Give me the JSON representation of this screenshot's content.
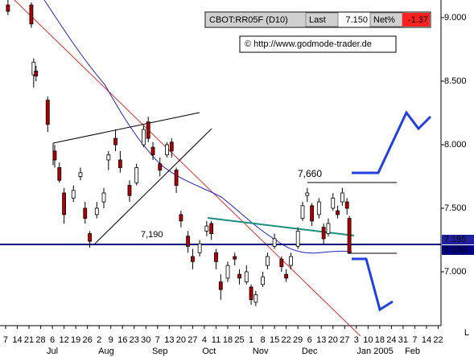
{
  "chart_data": {
    "type": "candlestick",
    "symbol": "CBOT:RR05F (D10)",
    "last_label": "Last",
    "last_value": "7.150",
    "net_label": "Net%",
    "net_value": "-1.37",
    "copyright": "© http://www.godmode-trader.de",
    "annotations": [
      "7,660",
      "7,190"
    ],
    "price_tags": [
      "7.195",
      "7.150"
    ],
    "up_color": "#ffffff",
    "down_color": "#b00000",
    "x": [
      1,
      11,
      12,
      13,
      18,
      21,
      23,
      25,
      29,
      32,
      34,
      36,
      39,
      42,
      44,
      47,
      49,
      53,
      56,
      59,
      61,
      63,
      66,
      69,
      71,
      73,
      75,
      78,
      80,
      83,
      86,
      88,
      90,
      92,
      95,
      98,
      100,
      103,
      105,
      107,
      110,
      112,
      115,
      118,
      120,
      122,
      125,
      127,
      129,
      131,
      134,
      136,
      138,
      140,
      142,
      144,
      146,
      147
    ],
    "open": [
      9.1,
      9.1,
      8.55,
      8.58,
      8.35,
      7.95,
      7.82,
      7.62,
      7.58,
      7.75,
      7.5,
      7.3,
      7.45,
      7.55,
      7.88,
      8.05,
      7.88,
      7.68,
      7.7,
      8.0,
      8.18,
      7.98,
      7.85,
      7.92,
      8.02,
      7.8,
      7.45,
      7.28,
      7.12,
      7.15,
      7.32,
      7.38,
      7.15,
      6.92,
      6.95,
      7.12,
      6.98,
      6.92,
      6.88,
      6.76,
      6.9,
      7.05,
      7.2,
      7.1,
      6.98,
      7.05,
      7.2,
      7.42,
      7.6,
      7.52,
      7.45,
      7.35,
      7.3,
      7.5,
      7.48,
      7.55,
      7.55,
      7.42
    ],
    "high": [
      9.15,
      9.12,
      8.68,
      8.62,
      8.38,
      8.0,
      7.86,
      7.66,
      7.68,
      7.82,
      7.55,
      7.32,
      7.55,
      7.66,
      7.95,
      8.12,
      7.95,
      7.72,
      7.85,
      8.15,
      8.22,
      8.02,
      7.9,
      8.02,
      8.05,
      7.82,
      7.48,
      7.32,
      7.18,
      7.25,
      7.4,
      7.4,
      7.18,
      6.98,
      7.08,
      7.15,
      7.02,
      7.05,
      6.9,
      6.85,
      7.0,
      7.15,
      7.3,
      7.12,
      7.02,
      7.15,
      7.35,
      7.55,
      7.66,
      7.54,
      7.58,
      7.38,
      7.42,
      7.62,
      7.52,
      7.66,
      7.58,
      7.44
    ],
    "low": [
      9.02,
      8.92,
      8.45,
      8.5,
      8.1,
      7.82,
      7.7,
      7.38,
      7.55,
      7.72,
      7.38,
      7.19,
      7.42,
      7.5,
      7.8,
      7.95,
      7.78,
      7.55,
      7.68,
      7.98,
      8.02,
      7.88,
      7.75,
      7.9,
      7.9,
      7.62,
      7.35,
      7.15,
      7.02,
      7.12,
      7.28,
      7.25,
      7.02,
      6.78,
      6.92,
      7.05,
      6.9,
      6.9,
      6.74,
      6.73,
      6.88,
      7.02,
      7.18,
      7.0,
      6.92,
      7.02,
      7.18,
      7.4,
      7.55,
      7.36,
      7.42,
      7.22,
      7.28,
      7.48,
      7.42,
      7.52,
      7.45,
      7.14
    ],
    "close": [
      9.05,
      8.95,
      8.65,
      8.54,
      8.16,
      7.88,
      7.72,
      7.45,
      7.64,
      7.78,
      7.42,
      7.24,
      7.5,
      7.62,
      7.92,
      8.0,
      7.82,
      7.6,
      7.82,
      8.12,
      8.05,
      7.92,
      7.8,
      8.0,
      7.95,
      7.68,
      7.4,
      7.2,
      7.08,
      7.22,
      7.36,
      7.3,
      7.08,
      6.86,
      7.05,
      7.1,
      6.95,
      7.0,
      6.78,
      6.82,
      6.96,
      7.12,
      7.26,
      7.04,
      6.95,
      7.12,
      7.32,
      7.52,
      7.62,
      7.4,
      7.55,
      7.26,
      7.38,
      7.58,
      7.45,
      7.62,
      7.5,
      7.15
    ],
    "xlim": [
      -2.4,
      186.2
    ],
    "ylim": [
      6.576,
      9.139
    ],
    "yticks": [
      {
        "value": 9,
        "label": "9.000"
      },
      {
        "value": 8.5,
        "label": "8.500"
      },
      {
        "value": 8,
        "label": "8.000"
      },
      {
        "value": 7.5,
        "label": "7.500"
      },
      {
        "value": 7,
        "label": "7.000"
      }
    ],
    "xticks": [
      {
        "value": 0,
        "label": "7"
      },
      {
        "value": 5,
        "label": "14"
      },
      {
        "value": 10,
        "label": "21"
      },
      {
        "value": 15,
        "label": "28"
      },
      {
        "value": 20,
        "label": "6"
      },
      {
        "value": 25,
        "label": "12"
      },
      {
        "value": 30,
        "label": "19"
      },
      {
        "value": 35,
        "label": "26"
      },
      {
        "value": 40,
        "label": "2"
      },
      {
        "value": 45,
        "label": "9"
      },
      {
        "value": 50,
        "label": "16"
      },
      {
        "value": 55,
        "label": "23"
      },
      {
        "value": 60,
        "label": "30"
      },
      {
        "value": 65,
        "label": "7"
      },
      {
        "value": 70,
        "label": "13"
      },
      {
        "value": 75,
        "label": "20"
      },
      {
        "value": 80,
        "label": "27"
      },
      {
        "value": 85,
        "label": "4"
      },
      {
        "value": 90,
        "label": "11"
      },
      {
        "value": 95,
        "label": "18"
      },
      {
        "value": 100,
        "label": "25"
      },
      {
        "value": 105,
        "label": "1"
      },
      {
        "value": 110,
        "label": "8"
      },
      {
        "value": 115,
        "label": "15"
      },
      {
        "value": 120,
        "label": "22"
      },
      {
        "value": 125,
        "label": "29"
      },
      {
        "value": 130,
        "label": "6"
      },
      {
        "value": 135,
        "label": "13"
      },
      {
        "value": 140,
        "label": "20"
      },
      {
        "value": 145,
        "label": "27"
      },
      {
        "value": 150,
        "label": "3"
      },
      {
        "value": 155,
        "label": "10"
      },
      {
        "value": 160,
        "label": "18"
      },
      {
        "value": 165,
        "label": "24"
      },
      {
        "value": 170,
        "label": "31"
      },
      {
        "value": 175,
        "label": "7"
      },
      {
        "value": 180,
        "label": "14"
      },
      {
        "value": 185,
        "label": "22"
      }
    ],
    "month_labels": [
      {
        "value": 20,
        "label": "Jul"
      },
      {
        "value": 43,
        "label": "Aug"
      },
      {
        "value": 66,
        "label": "Sep"
      },
      {
        "value": 87,
        "label": "Oct"
      },
      {
        "value": 109,
        "label": "Nov"
      },
      {
        "value": 130,
        "label": "Dec"
      },
      {
        "value": 158,
        "label": "Jan 2005"
      },
      {
        "value": 174,
        "label": "Feb"
      }
    ],
    "corner_label": "L"
  }
}
